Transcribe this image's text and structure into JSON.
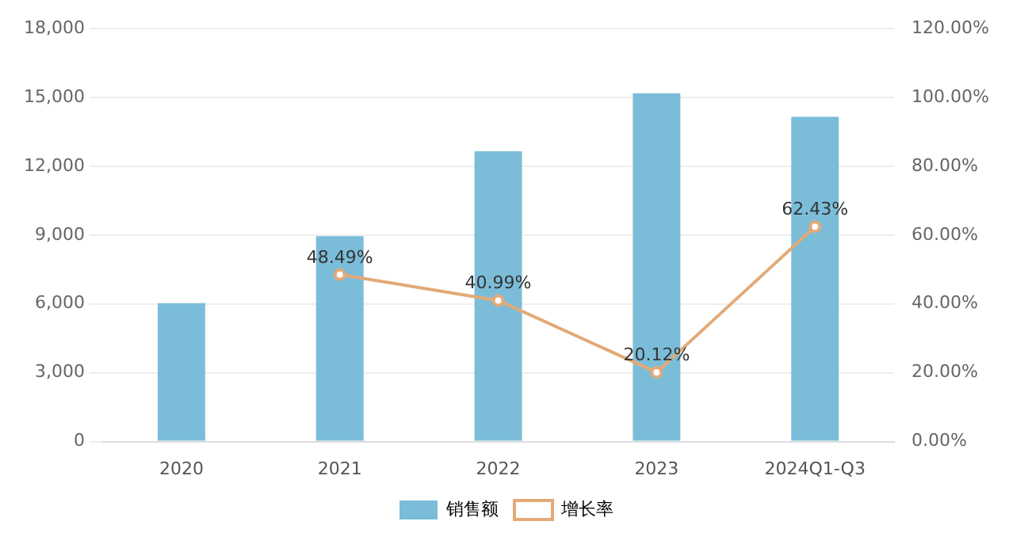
{
  "chart_data": {
    "type": "bar",
    "categories": [
      "2020",
      "2021",
      "2022",
      "2023",
      "2024Q1-Q3"
    ],
    "series": [
      {
        "name": "销售额",
        "color": "#7bbdd9",
        "values": [
          6030,
          8950,
          12650,
          15180,
          14150
        ]
      },
      {
        "name": "增长率",
        "type": "line",
        "axis": "y2",
        "color": "#e3a977",
        "marker": "circle",
        "values": [
          null,
          48.49,
          40.99,
          20.12,
          62.43
        ],
        "value_labels": [
          null,
          "48.49%",
          "40.99%",
          "20.12%",
          "62.43%"
        ]
      }
    ],
    "ylim": [
      0,
      18000
    ],
    "yticks": [
      {
        "value": 0,
        "label": "0"
      },
      {
        "value": 3000,
        "label": "3,000"
      },
      {
        "value": 6000,
        "label": "6,000"
      },
      {
        "value": 9000,
        "label": "9,000"
      },
      {
        "value": 12000,
        "label": "12,000"
      },
      {
        "value": 15000,
        "label": "15,000"
      },
      {
        "value": 18000,
        "label": "18,000"
      }
    ],
    "y2lim": [
      0,
      120
    ],
    "y2ticks": [
      {
        "value": 0,
        "label": "0.00%"
      },
      {
        "value": 20,
        "label": "20.00%"
      },
      {
        "value": 40,
        "label": "40.00%"
      },
      {
        "value": 60,
        "label": "60.00%"
      },
      {
        "value": 80,
        "label": "80.00%"
      },
      {
        "value": 100,
        "label": "100.00%"
      },
      {
        "value": 120,
        "label": "120.00%"
      }
    ],
    "grid": "y",
    "legend": "bottom"
  }
}
